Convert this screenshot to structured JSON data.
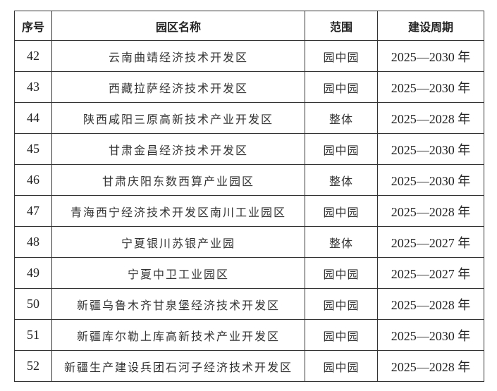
{
  "headers": {
    "no": "序号",
    "name": "园区名称",
    "scope": "范围",
    "period": "建设周期"
  },
  "rows": [
    {
      "no": "42",
      "name": "云南曲靖经济技术开发区",
      "scope": "园中园",
      "period": "2025—2030 年"
    },
    {
      "no": "43",
      "name": "西藏拉萨经济技术开发区",
      "scope": "园中园",
      "period": "2025—2030 年"
    },
    {
      "no": "44",
      "name": "陕西咸阳三原高新技术产业开发区",
      "scope": "整体",
      "period": "2025—2028 年"
    },
    {
      "no": "45",
      "name": "甘肃金昌经济技术开发区",
      "scope": "园中园",
      "period": "2025—2030 年"
    },
    {
      "no": "46",
      "name": "甘肃庆阳东数西算产业园区",
      "scope": "整体",
      "period": "2025—2030 年"
    },
    {
      "no": "47",
      "name": "青海西宁经济技术开发区南川工业园区",
      "scope": "园中园",
      "period": "2025—2028 年"
    },
    {
      "no": "48",
      "name": "宁夏银川苏银产业园",
      "scope": "整体",
      "period": "2025—2027 年"
    },
    {
      "no": "49",
      "name": "宁夏中卫工业园区",
      "scope": "园中园",
      "period": "2025—2027 年"
    },
    {
      "no": "50",
      "name": "新疆乌鲁木齐甘泉堡经济技术开发区",
      "scope": "园中园",
      "period": "2025—2028 年"
    },
    {
      "no": "51",
      "name": "新疆库尔勒上库高新技术产业开发区",
      "scope": "园中园",
      "period": "2025—2030 年"
    },
    {
      "no": "52",
      "name": "新疆生产建设兵团石河子经济技术开发区",
      "scope": "园中园",
      "period": "2025—2028 年"
    }
  ]
}
